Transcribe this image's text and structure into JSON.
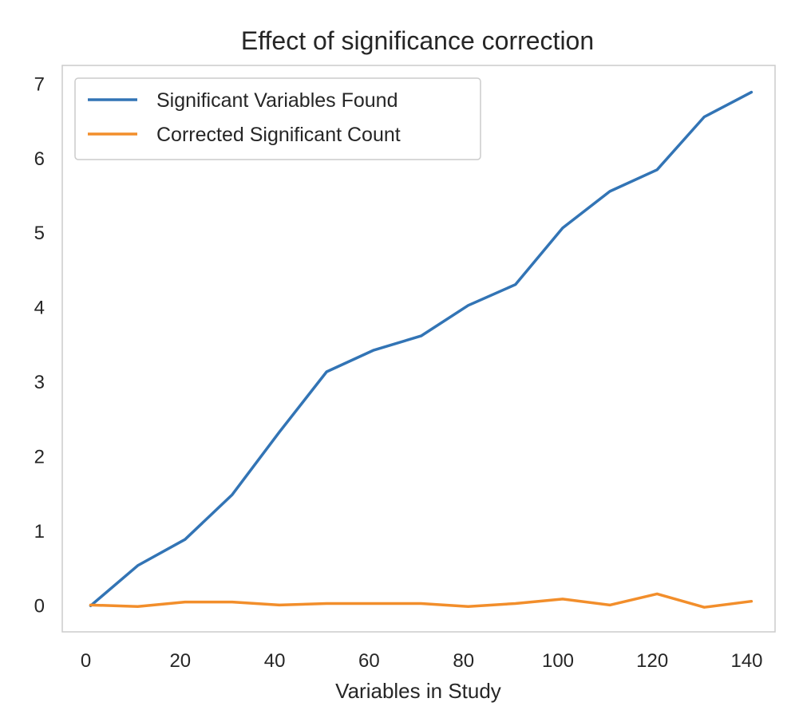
{
  "chart_data": {
    "type": "line",
    "title": "Effect of significance correction",
    "xlabel": "Variables in Study",
    "ylabel": "",
    "xlim": [
      -5,
      146
    ],
    "ylim": [
      -0.35,
      7.25
    ],
    "xticks": [
      0,
      20,
      40,
      60,
      80,
      100,
      120,
      140
    ],
    "yticks": [
      0,
      1,
      2,
      3,
      4,
      5,
      6,
      7
    ],
    "grid": false,
    "legend_position": "top-left",
    "x": [
      1,
      11,
      21,
      31,
      41,
      51,
      61,
      71,
      81,
      91,
      101,
      111,
      121,
      131,
      141
    ],
    "series": [
      {
        "name": "Significant Variables Found",
        "color": "#3274b5",
        "values": [
          0.0,
          0.54,
          0.89,
          1.49,
          2.33,
          3.14,
          3.43,
          3.62,
          4.03,
          4.31,
          5.07,
          5.56,
          5.85,
          6.56,
          6.89
        ]
      },
      {
        "name": "Corrected Significant Count",
        "color": "#f28e2b",
        "values": [
          0.01,
          -0.01,
          0.05,
          0.05,
          0.01,
          0.03,
          0.03,
          0.03,
          -0.01,
          0.03,
          0.09,
          0.01,
          0.16,
          -0.02,
          0.06
        ]
      }
    ]
  }
}
